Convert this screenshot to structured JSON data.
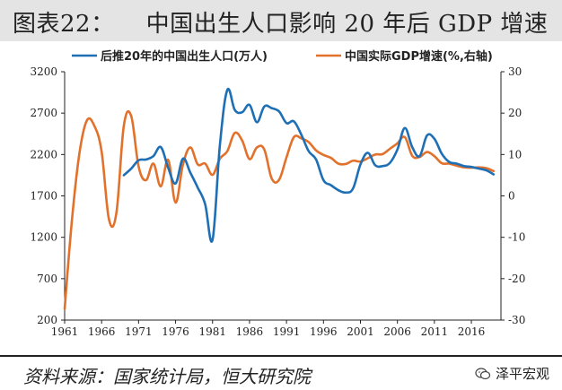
{
  "title": "图表22：    中国出生人口影响 20 年后 GDP 增速",
  "source": "资料来源：国家统计局，恒大研究院",
  "watermark": "泽平宏观",
  "colors": {
    "blue": "#1f6fb5",
    "orange": "#e2712b"
  },
  "chart_data": {
    "type": "line",
    "x_ticks": [
      1961,
      1966,
      1971,
      1976,
      1981,
      1986,
      1991,
      1996,
      2001,
      2006,
      2011,
      2016
    ],
    "xlim": [
      1961,
      2020
    ],
    "ylim_left": [
      200,
      3200
    ],
    "yticks_left": [
      200,
      700,
      1200,
      1700,
      2200,
      2700,
      3200
    ],
    "ylim_right": [
      -30,
      30
    ],
    "yticks_right": [
      -30,
      -20,
      -10,
      0,
      10,
      20,
      30
    ],
    "series": [
      {
        "name": "后推20年的中国出生人口(万人)",
        "color": "blue",
        "axis": "left",
        "x": [
          1969,
          1970,
          1971,
          1972,
          1973,
          1974,
          1975,
          1976,
          1977,
          1978,
          1979,
          1980,
          1981,
          1982,
          1983,
          1984,
          1985,
          1986,
          1987,
          1988,
          1989,
          1990,
          1991,
          1992,
          1993,
          1994,
          1995,
          1996,
          1997,
          1998,
          1999,
          2000,
          2001,
          2002,
          2003,
          2004,
          2005,
          2006,
          2007,
          2008,
          2009,
          2010,
          2011,
          2012,
          2013,
          2014,
          2015,
          2016,
          2017,
          2018,
          2019
        ],
        "values": [
          1950,
          2030,
          2130,
          2140,
          2180,
          2290,
          2040,
          1850,
          2150,
          1980,
          1800,
          1600,
          1170,
          2320,
          2980,
          2740,
          2710,
          2800,
          2590,
          2780,
          2760,
          2720,
          2580,
          2600,
          2440,
          2240,
          2140,
          1890,
          1830,
          1770,
          1740,
          1790,
          2080,
          2220,
          2070,
          2060,
          2100,
          2260,
          2520,
          2290,
          2180,
          2430,
          2390,
          2210,
          2110,
          2090,
          2060,
          2050,
          2030,
          2010,
          1960
        ]
      },
      {
        "name": "中国实际GDP增速(%,右轴)",
        "color": "orange",
        "axis": "right",
        "x": [
          1961,
          1962,
          1963,
          1964,
          1965,
          1966,
          1967,
          1968,
          1969,
          1970,
          1971,
          1972,
          1973,
          1974,
          1975,
          1976,
          1977,
          1978,
          1979,
          1980,
          1981,
          1982,
          1983,
          1984,
          1985,
          1986,
          1987,
          1988,
          1989,
          1990,
          1991,
          1992,
          1993,
          1994,
          1995,
          1996,
          1997,
          1998,
          1999,
          2000,
          2001,
          2002,
          2003,
          2004,
          2005,
          2006,
          2007,
          2008,
          2009,
          2010,
          2011,
          2012,
          2013,
          2014,
          2015,
          2016,
          2017,
          2018,
          2019
        ],
        "values": [
          -27.3,
          -5.6,
          10.3,
          18.2,
          17.0,
          10.7,
          -5.7,
          -4.1,
          16.9,
          19.3,
          7.1,
          3.8,
          7.8,
          2.3,
          8.7,
          -1.6,
          7.6,
          11.7,
          7.6,
          7.8,
          5.1,
          9.0,
          10.8,
          15.2,
          13.4,
          8.9,
          11.7,
          11.2,
          4.2,
          3.9,
          9.3,
          14.2,
          13.9,
          13.0,
          11.0,
          9.9,
          9.2,
          7.8,
          7.7,
          8.5,
          8.3,
          9.1,
          10.0,
          10.1,
          11.4,
          12.7,
          14.2,
          9.7,
          9.4,
          10.6,
          9.6,
          7.9,
          7.8,
          7.3,
          6.9,
          6.8,
          6.9,
          6.7,
          6.0
        ]
      }
    ]
  }
}
